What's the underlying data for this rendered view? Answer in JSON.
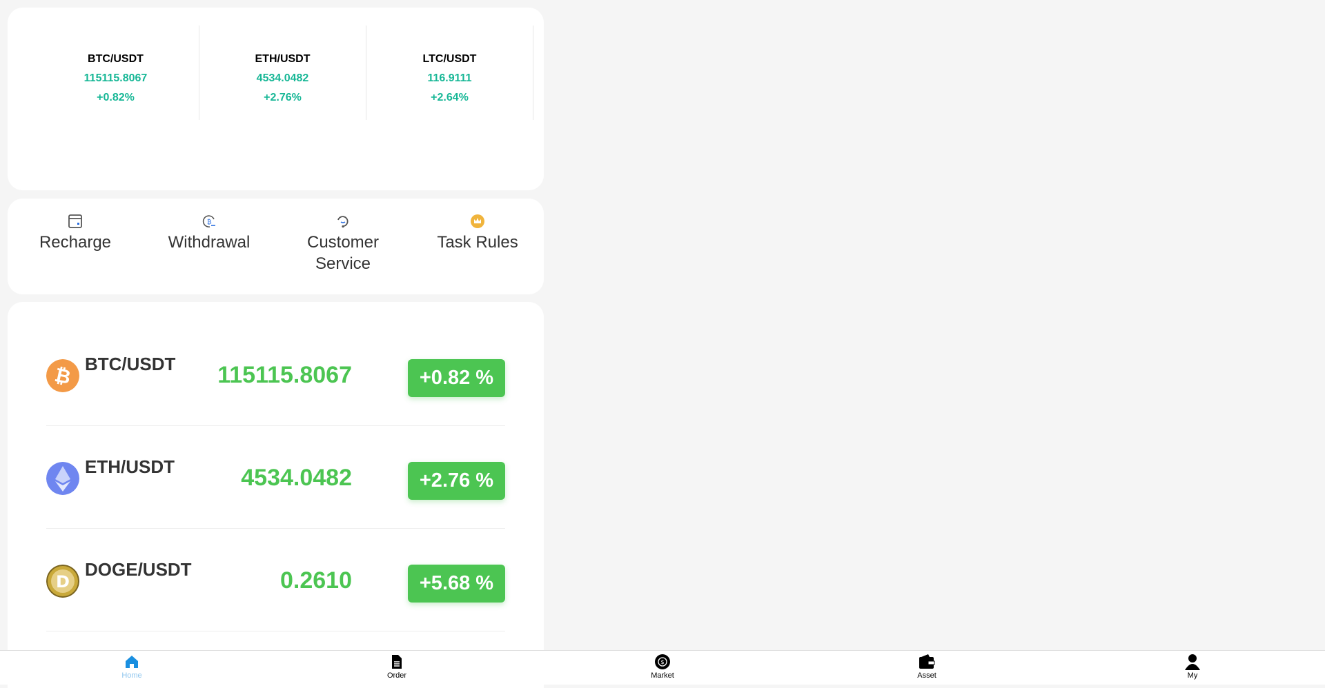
{
  "tickers": [
    {
      "pair": "BTC/USDT",
      "price": "115115.8067",
      "change": "+0.82%"
    },
    {
      "pair": "ETH/USDT",
      "price": "4534.0482",
      "change": "+2.76%"
    },
    {
      "pair": "LTC/USDT",
      "price": "116.9111",
      "change": "+2.64%"
    }
  ],
  "actions": [
    {
      "label": "Recharge",
      "icon": "wallet-icon"
    },
    {
      "label": "Withdrawal",
      "icon": "bitcoin-withdraw-icon"
    },
    {
      "label": "Customer Service",
      "icon": "headset-icon"
    },
    {
      "label": "Task Rules",
      "icon": "crown-icon"
    }
  ],
  "markets": [
    {
      "pair": "BTC/USDT",
      "price": "115115.8067",
      "change": "+0.82 %",
      "icon": "bitcoin-icon",
      "color": "#f39a47"
    },
    {
      "pair": "ETH/USDT",
      "price": "4534.0482",
      "change": "+2.76 %",
      "icon": "ethereum-icon",
      "color": "#6f86f0"
    },
    {
      "pair": "DOGE/USDT",
      "price": "0.2610",
      "change": "+5.68 %",
      "icon": "dogecoin-icon",
      "color": "#c9a93a"
    }
  ],
  "nav": [
    {
      "label": "Home",
      "active": true
    },
    {
      "label": "Order"
    },
    {
      "label": "Market"
    },
    {
      "label": "Asset"
    },
    {
      "label": "My"
    }
  ],
  "colors": {
    "up_text": "#17b796",
    "up_badge": "#4cc552",
    "nav_active": "#1a8fe0"
  }
}
